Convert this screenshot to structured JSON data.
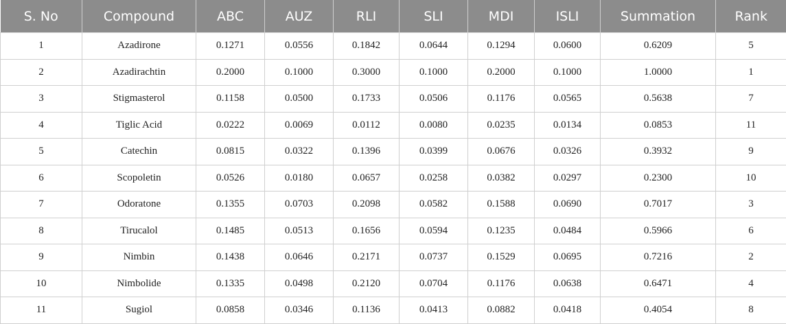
{
  "table": {
    "headers": [
      "S. No",
      "Compound",
      "ABC",
      "AUZ",
      "RLI",
      "SLI",
      "MDI",
      "ISLI",
      "Summation",
      "Rank"
    ],
    "rows": [
      [
        "1",
        "Azadirone",
        "0.1271",
        "0.0556",
        "0.1842",
        "0.0644",
        "0.1294",
        "0.0600",
        "0.6209",
        "5"
      ],
      [
        "2",
        "Azadirachtin",
        "0.2000",
        "0.1000",
        "0.3000",
        "0.1000",
        "0.2000",
        "0.1000",
        "1.0000",
        "1"
      ],
      [
        "3",
        "Stigmasterol",
        "0.1158",
        "0.0500",
        "0.1733",
        "0.0506",
        "0.1176",
        "0.0565",
        "0.5638",
        "7"
      ],
      [
        "4",
        "Tiglic Acid",
        "0.0222",
        "0.0069",
        "0.0112",
        "0.0080",
        "0.0235",
        "0.0134",
        "0.0853",
        "11"
      ],
      [
        "5",
        "Catechin",
        "0.0815",
        "0.0322",
        "0.1396",
        "0.0399",
        "0.0676",
        "0.0326",
        "0.3932",
        "9"
      ],
      [
        "6",
        "Scopoletin",
        "0.0526",
        "0.0180",
        "0.0657",
        "0.0258",
        "0.0382",
        "0.0297",
        "0.2300",
        "10"
      ],
      [
        "7",
        "Odoratone",
        "0.1355",
        "0.0703",
        "0.2098",
        "0.0582",
        "0.1588",
        "0.0690",
        "0.7017",
        "3"
      ],
      [
        "8",
        "Tirucalol",
        "0.1485",
        "0.0513",
        "0.1656",
        "0.0594",
        "0.1235",
        "0.0484",
        "0.5966",
        "6"
      ],
      [
        "9",
        "Nimbin",
        "0.1438",
        "0.0646",
        "0.2171",
        "0.0737",
        "0.1529",
        "0.0695",
        "0.7216",
        "2"
      ],
      [
        "10",
        "Nimbolide",
        "0.1335",
        "0.0498",
        "0.2120",
        "0.0704",
        "0.1176",
        "0.0638",
        "0.6471",
        "4"
      ],
      [
        "11",
        "Sugiol",
        "0.0858",
        "0.0346",
        "0.1136",
        "0.0413",
        "0.0882",
        "0.0418",
        "0.4054",
        "8"
      ]
    ]
  },
  "colors": {
    "header_background": "#8c8c8c",
    "header_text": "#ffffff",
    "grid_line": "#cfcfcf"
  }
}
